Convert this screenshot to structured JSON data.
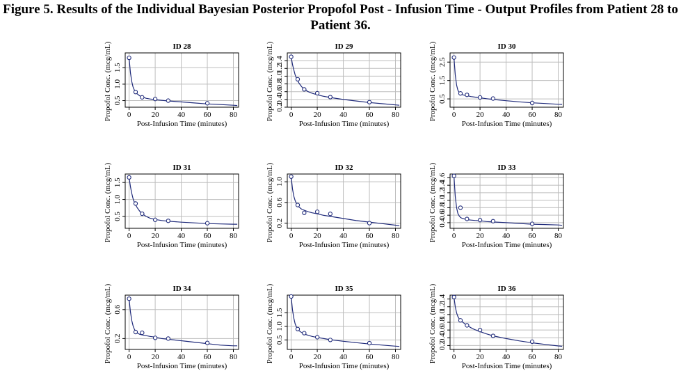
{
  "figure": {
    "title_line1": "Figure 5. Results of the Individual Bayesian Posterior Propofol Post - Infusion Time - Output Profiles from Patient 28 to",
    "title_line2": "Patient 36."
  },
  "colors": {
    "curve": "#1f2a7a",
    "grid": "#bdbdbd",
    "axis": "#000000",
    "point": "#1f2a7a"
  },
  "chart_data": [
    {
      "type": "line",
      "title": "ID 28",
      "xlabel": "Post-Infusion Time (minutes)",
      "ylabel": "Propofol Conc. (mcg/mL)",
      "xlim": [
        -3,
        84
      ],
      "ylim": [
        0.3,
        1.95
      ],
      "xticks": [
        0,
        20,
        40,
        60,
        80
      ],
      "yticks": [
        0.5,
        1.0,
        1.5
      ],
      "ytick_labels": [
        "0.5",
        "1.0",
        "1.5"
      ],
      "grid": true,
      "observed": {
        "x": [
          0,
          5,
          10,
          20,
          30,
          60
        ],
        "y": [
          1.8,
          0.76,
          0.6,
          0.55,
          0.5,
          0.42
        ]
      },
      "fit": {
        "x": [
          0,
          1,
          2,
          3,
          4,
          5,
          6,
          8,
          10,
          13,
          16,
          20,
          25,
          30,
          40,
          50,
          60,
          70,
          80,
          83
        ],
        "y": [
          1.8,
          1.35,
          1.08,
          0.92,
          0.82,
          0.76,
          0.71,
          0.65,
          0.61,
          0.57,
          0.55,
          0.53,
          0.51,
          0.49,
          0.46,
          0.43,
          0.4,
          0.38,
          0.36,
          0.35
        ]
      }
    },
    {
      "type": "line",
      "title": "ID 29",
      "xlabel": "Post-Infusion Time (minutes)",
      "ylabel": "Propofol Conc. (mcg/mL)",
      "xlim": [
        -3,
        84
      ],
      "ylim": [
        0.2,
        1.6
      ],
      "xticks": [
        0,
        20,
        40,
        60,
        80
      ],
      "yticks": [
        0.2,
        0.4,
        0.6,
        0.8,
        1.0,
        1.2,
        1.4
      ],
      "ytick_labels": [
        "0.2",
        "0.4",
        "0.6",
        "0.8",
        "1.0",
        "1.2",
        "1.4"
      ],
      "grid": true,
      "observed": {
        "x": [
          0,
          5,
          10,
          20,
          30,
          60
        ],
        "y": [
          1.5,
          0.92,
          0.66,
          0.56,
          0.46,
          0.33
        ]
      },
      "fit": {
        "x": [
          0,
          1,
          2,
          3,
          4,
          5,
          6,
          8,
          10,
          13,
          16,
          20,
          25,
          30,
          40,
          50,
          60,
          70,
          80,
          83
        ],
        "y": [
          1.5,
          1.3,
          1.16,
          1.04,
          0.95,
          0.88,
          0.82,
          0.73,
          0.66,
          0.6,
          0.56,
          0.52,
          0.48,
          0.45,
          0.4,
          0.36,
          0.32,
          0.29,
          0.26,
          0.25
        ]
      }
    },
    {
      "type": "line",
      "title": "ID 30",
      "xlabel": "Post-Infusion Time (minutes)",
      "ylabel": "Propofol Conc. (mcg/mL)",
      "xlim": [
        -3,
        84
      ],
      "ylim": [
        0.05,
        3.0
      ],
      "xticks": [
        0,
        20,
        40,
        60,
        80
      ],
      "yticks": [
        0.5,
        1.5,
        2.5
      ],
      "ytick_labels": [
        "0.5",
        "1.5",
        "2.5"
      ],
      "grid": true,
      "observed": {
        "x": [
          0,
          5,
          10,
          20,
          30,
          60
        ],
        "y": [
          2.75,
          0.8,
          0.72,
          0.58,
          0.52,
          0.28
        ]
      },
      "fit": {
        "x": [
          0,
          1,
          2,
          3,
          4,
          5,
          6,
          8,
          10,
          13,
          16,
          20,
          25,
          30,
          40,
          50,
          60,
          70,
          80,
          83
        ],
        "y": [
          2.75,
          1.8,
          1.25,
          0.98,
          0.85,
          0.78,
          0.74,
          0.7,
          0.67,
          0.63,
          0.6,
          0.56,
          0.51,
          0.47,
          0.4,
          0.34,
          0.29,
          0.25,
          0.21,
          0.2
        ]
      }
    },
    {
      "type": "line",
      "title": "ID 31",
      "xlabel": "Post-Infusion Time (minutes)",
      "ylabel": "Propofol Conc. (mcg/mL)",
      "xlim": [
        -3,
        84
      ],
      "ylim": [
        0.15,
        1.75
      ],
      "xticks": [
        0,
        20,
        40,
        60,
        80
      ],
      "yticks": [
        0.5,
        1.0,
        1.5
      ],
      "ytick_labels": [
        "0.5",
        "1.0",
        "1.5"
      ],
      "grid": true,
      "observed": {
        "x": [
          0,
          5,
          10,
          20,
          30,
          60
        ],
        "y": [
          1.65,
          0.88,
          0.58,
          0.4,
          0.37,
          0.3
        ]
      },
      "fit": {
        "x": [
          0,
          1,
          2,
          3,
          4,
          5,
          6,
          8,
          10,
          13,
          16,
          20,
          25,
          30,
          40,
          50,
          60,
          70,
          80,
          83
        ],
        "y": [
          1.65,
          1.38,
          1.18,
          1.03,
          0.92,
          0.84,
          0.77,
          0.66,
          0.58,
          0.5,
          0.45,
          0.41,
          0.38,
          0.36,
          0.33,
          0.31,
          0.29,
          0.28,
          0.27,
          0.27
        ]
      }
    },
    {
      "type": "line",
      "title": "ID 32",
      "xlabel": "Post-Infusion Time (minutes)",
      "ylabel": "Propofol Conc. (mcg/mL)",
      "xlim": [
        -3,
        84
      ],
      "ylim": [
        0.1,
        1.15
      ],
      "xticks": [
        0,
        20,
        40,
        60,
        80
      ],
      "yticks": [
        0.2,
        0.6,
        1.0
      ],
      "ytick_labels": [
        "0.2",
        "0.6",
        "1.0"
      ],
      "grid": true,
      "observed": {
        "x": [
          0,
          5,
          10,
          20,
          30,
          60
        ],
        "y": [
          1.1,
          0.55,
          0.4,
          0.42,
          0.38,
          0.2
        ]
      },
      "fit": {
        "x": [
          0,
          1,
          2,
          3,
          4,
          5,
          6,
          8,
          10,
          13,
          16,
          20,
          25,
          30,
          40,
          50,
          60,
          70,
          80,
          83
        ],
        "y": [
          1.1,
          0.86,
          0.72,
          0.64,
          0.58,
          0.54,
          0.51,
          0.47,
          0.45,
          0.42,
          0.4,
          0.38,
          0.35,
          0.33,
          0.29,
          0.25,
          0.22,
          0.19,
          0.16,
          0.15
        ]
      }
    },
    {
      "type": "line",
      "title": "ID 33",
      "xlabel": "Post-Infusion Time (minutes)",
      "ylabel": "Propofol Conc. (mcg/mL)",
      "xlim": [
        -3,
        84
      ],
      "ylim": [
        0.25,
        1.7
      ],
      "xticks": [
        0,
        20,
        40,
        60,
        80
      ],
      "yticks": [
        0.4,
        0.6,
        0.8,
        1.0,
        1.2,
        1.4,
        1.6
      ],
      "ytick_labels": [
        "0.4",
        "0.6",
        "0.8",
        "1.0",
        "1.2",
        "1.4",
        "1.6"
      ],
      "grid": true,
      "observed": {
        "x": [
          0,
          5,
          10,
          20,
          30,
          60
        ],
        "y": [
          1.65,
          0.8,
          0.5,
          0.47,
          0.44,
          0.37
        ]
      },
      "fit": {
        "x": [
          0,
          1,
          2,
          3,
          4,
          5,
          6,
          8,
          10,
          13,
          16,
          20,
          25,
          30,
          40,
          50,
          60,
          70,
          80,
          83
        ],
        "y": [
          1.65,
          1.1,
          0.8,
          0.65,
          0.58,
          0.54,
          0.52,
          0.5,
          0.48,
          0.47,
          0.46,
          0.45,
          0.43,
          0.42,
          0.4,
          0.38,
          0.36,
          0.35,
          0.34,
          0.33
        ]
      }
    },
    {
      "type": "line",
      "title": "ID 34",
      "xlabel": "Post-Infusion Time (minutes)",
      "ylabel": "Propofol Conc. (mcg/mL)",
      "xlim": [
        -3,
        84
      ],
      "ylim": [
        0.05,
        0.8
      ],
      "xticks": [
        0,
        20,
        40,
        60,
        80
      ],
      "yticks": [
        0.2,
        0.6
      ],
      "ytick_labels": [
        "0.2",
        "0.6"
      ],
      "grid": true,
      "observed": {
        "x": [
          0,
          5,
          10,
          20,
          30,
          60
        ],
        "y": [
          0.75,
          0.29,
          0.28,
          0.21,
          0.2,
          0.14
        ]
      },
      "fit": {
        "x": [
          0,
          1,
          2,
          3,
          4,
          5,
          6,
          8,
          10,
          13,
          16,
          20,
          25,
          30,
          40,
          50,
          60,
          70,
          80,
          83
        ],
        "y": [
          0.75,
          0.57,
          0.45,
          0.38,
          0.33,
          0.3,
          0.28,
          0.26,
          0.25,
          0.24,
          0.23,
          0.22,
          0.2,
          0.19,
          0.17,
          0.15,
          0.13,
          0.11,
          0.1,
          0.1
        ]
      }
    },
    {
      "type": "line",
      "title": "ID 35",
      "xlabel": "Post-Infusion Time (minutes)",
      "ylabel": "Propofol Conc. (mcg/mL)",
      "xlim": [
        -3,
        84
      ],
      "ylim": [
        0.15,
        2.15
      ],
      "xticks": [
        0,
        20,
        40,
        60,
        80
      ],
      "yticks": [
        0.5,
        1.0,
        1.5
      ],
      "ytick_labels": [
        "0.5",
        "1.0",
        "1.5"
      ],
      "grid": true,
      "observed": {
        "x": [
          0,
          5,
          10,
          20,
          30,
          60
        ],
        "y": [
          2.1,
          0.9,
          0.75,
          0.6,
          0.5,
          0.38
        ]
      },
      "fit": {
        "x": [
          0,
          1,
          2,
          3,
          4,
          5,
          6,
          8,
          10,
          13,
          16,
          20,
          25,
          30,
          40,
          50,
          60,
          70,
          80,
          83
        ],
        "y": [
          2.1,
          1.6,
          1.3,
          1.1,
          0.98,
          0.9,
          0.84,
          0.77,
          0.72,
          0.67,
          0.63,
          0.59,
          0.55,
          0.51,
          0.45,
          0.4,
          0.35,
          0.31,
          0.27,
          0.26
        ]
      }
    },
    {
      "type": "line",
      "title": "ID 36",
      "xlabel": "Post-Infusion Time (minutes)",
      "ylabel": "Propofol Conc. (mcg/mL)",
      "xlim": [
        -3,
        84
      ],
      "ylim": [
        0.1,
        1.5
      ],
      "xticks": [
        0,
        20,
        40,
        60,
        80
      ],
      "yticks": [
        0.2,
        0.4,
        0.6,
        0.8,
        1.0,
        1.2,
        1.4
      ],
      "ytick_labels": [
        "0.2",
        "0.4",
        "0.6",
        "0.8",
        "1.0",
        "1.2",
        "1.4"
      ],
      "grid": true,
      "observed": {
        "x": [
          0,
          5,
          10,
          20,
          30,
          60
        ],
        "y": [
          1.45,
          0.85,
          0.72,
          0.6,
          0.45,
          0.3
        ]
      },
      "fit": {
        "x": [
          0,
          1,
          2,
          3,
          4,
          5,
          6,
          8,
          10,
          13,
          16,
          20,
          25,
          30,
          40,
          50,
          60,
          70,
          80,
          83
        ],
        "y": [
          1.45,
          1.2,
          1.04,
          0.95,
          0.89,
          0.85,
          0.82,
          0.77,
          0.72,
          0.66,
          0.61,
          0.56,
          0.5,
          0.45,
          0.38,
          0.32,
          0.27,
          0.23,
          0.19,
          0.18
        ]
      }
    }
  ]
}
